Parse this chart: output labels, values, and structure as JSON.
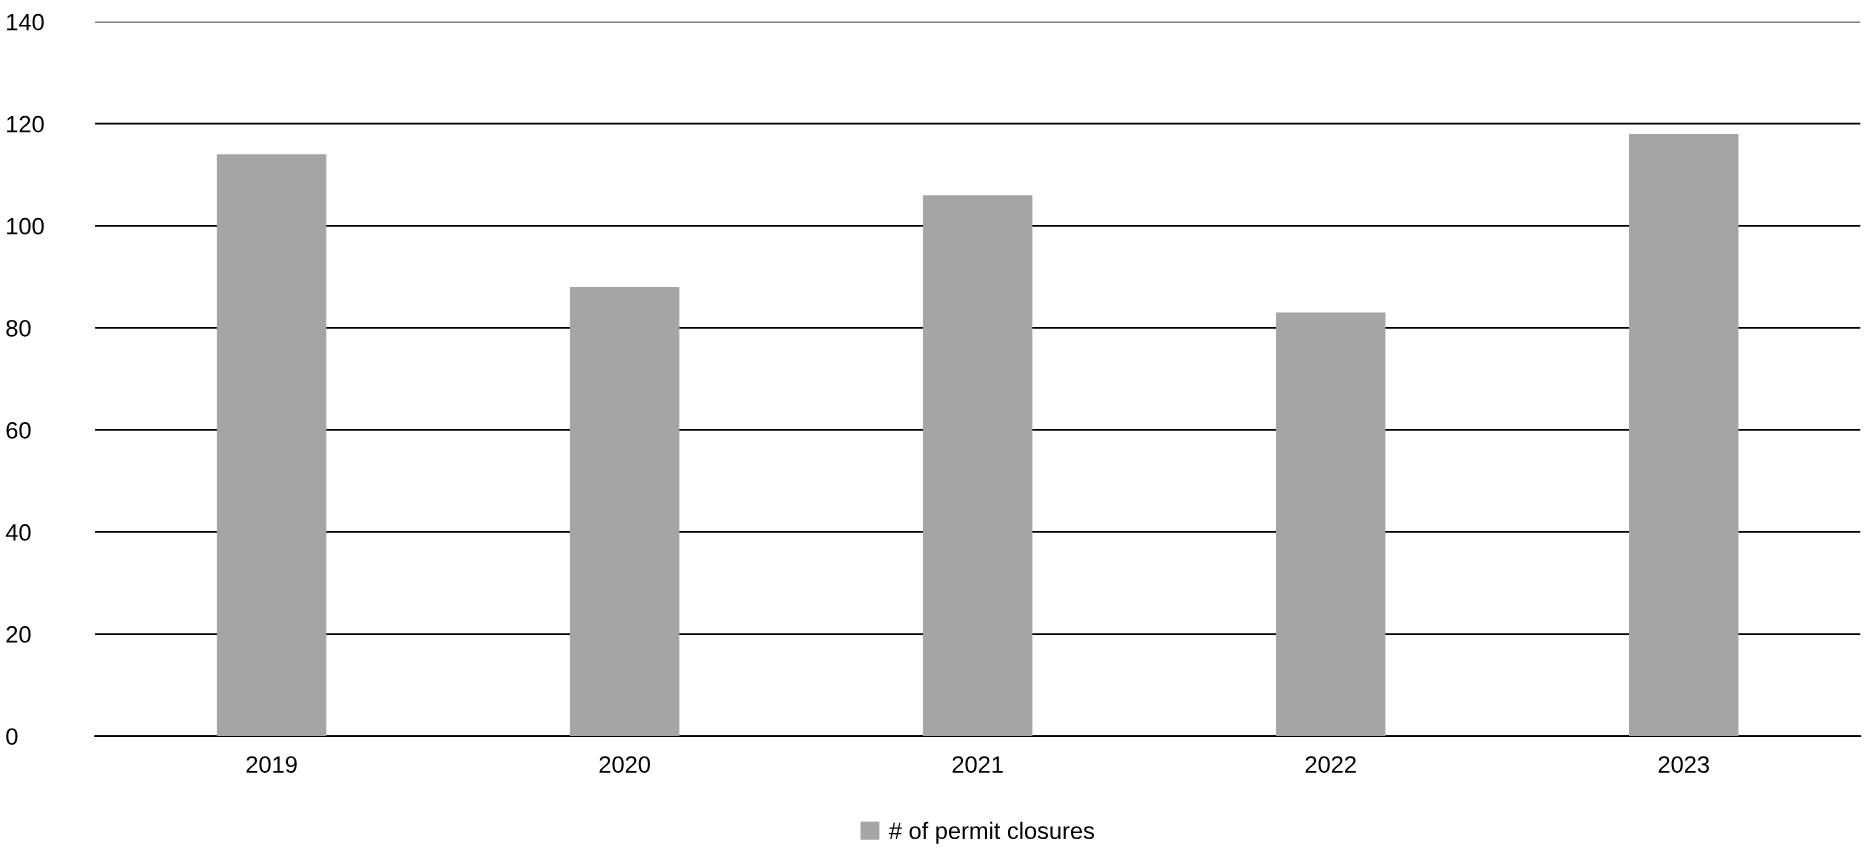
{
  "chart_data": {
    "type": "bar",
    "categories": [
      "2019",
      "2020",
      "2021",
      "2022",
      "2023"
    ],
    "series": [
      {
        "name": "# of permit closures",
        "color": "#a5a5a5",
        "values": [
          114,
          88,
          106,
          83,
          118
        ]
      }
    ],
    "ylim": [
      0,
      140
    ],
    "yticks": [
      0,
      20,
      40,
      60,
      80,
      100,
      120,
      140
    ],
    "grid": "y",
    "legend": "bottom"
  }
}
